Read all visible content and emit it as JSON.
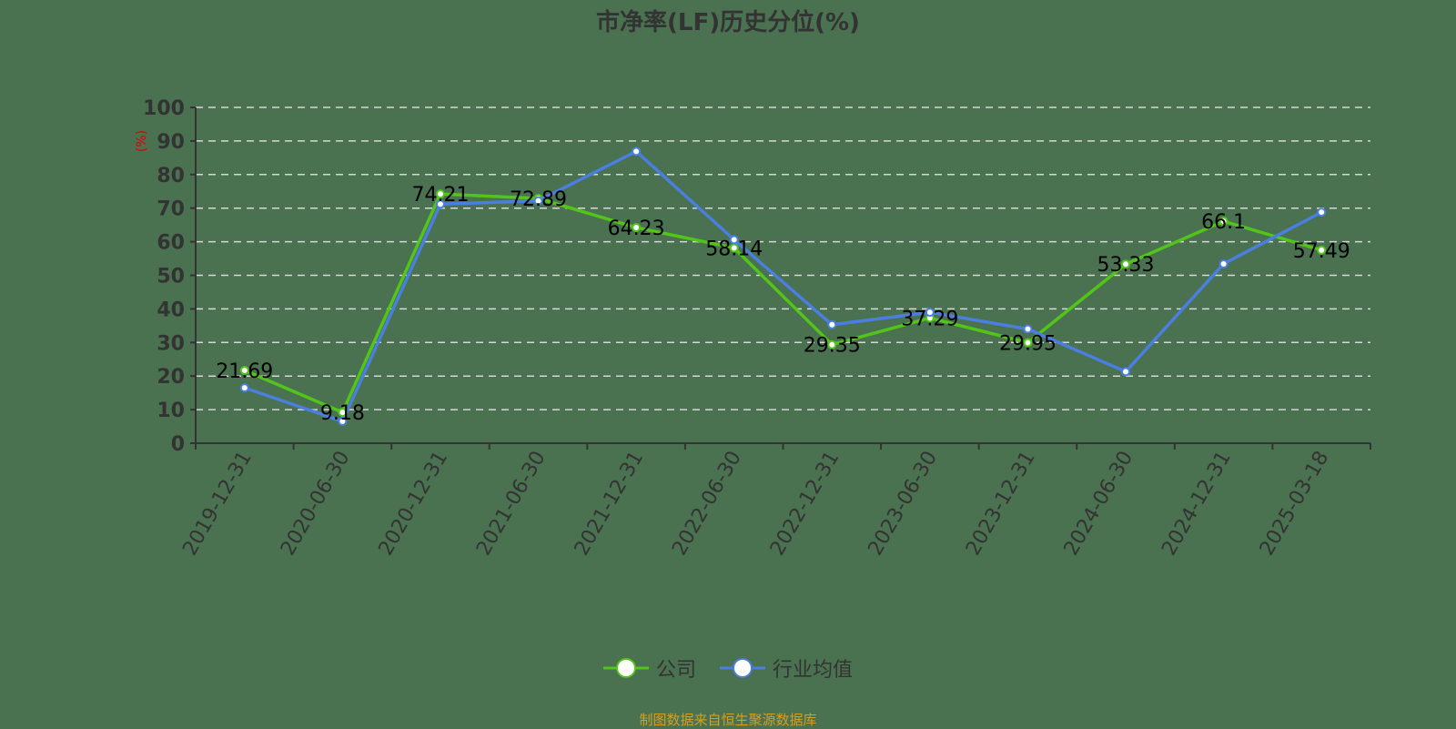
{
  "title": "市净率(LF)历史分位(%)",
  "source": "制图数据来自恒生聚源数据库",
  "legend": [
    {
      "name": "公司",
      "color": "#52c41a"
    },
    {
      "name": "行业均值",
      "color": "#4a7fe0"
    }
  ],
  "chart_data": {
    "type": "line",
    "title": "市净率(LF)历史分位(%)",
    "xlabel": "",
    "ylabel": "(%)",
    "ylim": [
      0,
      100
    ],
    "yticks": [
      0,
      10,
      20,
      30,
      40,
      50,
      60,
      70,
      80,
      90,
      100
    ],
    "grid": true,
    "legend_position": "bottom",
    "categories": [
      "2019-12-31",
      "2020-06-30",
      "2020-12-31",
      "2021-06-30",
      "2021-12-31",
      "2022-06-30",
      "2022-12-31",
      "2023-06-30",
      "2023-12-31",
      "2024-06-30",
      "2024-12-31",
      "2025-03-18"
    ],
    "series": [
      {
        "name": "公司",
        "color": "#52c41a",
        "labeled": true,
        "values": [
          21.69,
          9.18,
          74.21,
          72.89,
          64.23,
          58.14,
          29.35,
          37.29,
          29.95,
          53.33,
          66.1,
          57.49
        ]
      },
      {
        "name": "行业均值",
        "color": "#4a7fe0",
        "labeled": false,
        "values": [
          16.5,
          6.5,
          71.2,
          72.2,
          86.9,
          60.6,
          35.3,
          39.0,
          34.0,
          21.3,
          53.4,
          68.8
        ]
      }
    ]
  }
}
